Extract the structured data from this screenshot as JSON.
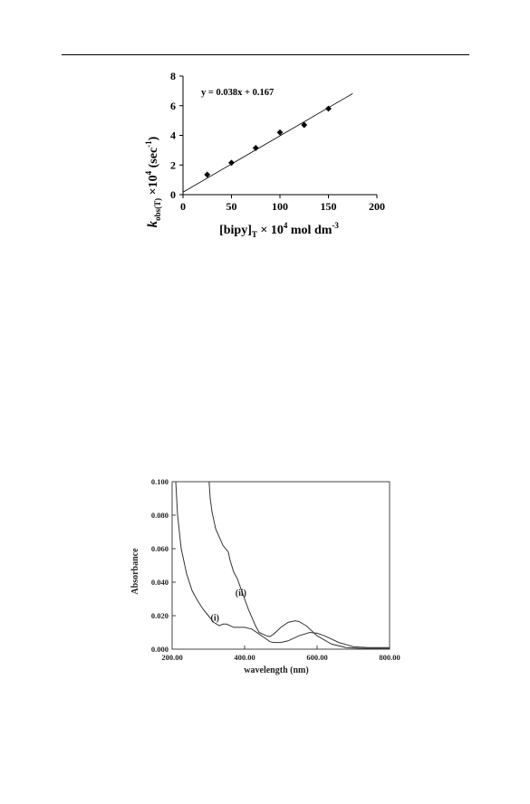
{
  "chart_data": [
    {
      "type": "scatter",
      "equation": "y = 0.038x + 0.167",
      "x": [
        25,
        50,
        75,
        100,
        125,
        150
      ],
      "y": [
        1.35,
        2.15,
        3.15,
        4.2,
        4.7,
        5.8
      ],
      "trendline": {
        "slope": 0.038,
        "intercept": 0.167,
        "x_range": [
          0,
          175
        ]
      },
      "xlim": [
        0,
        200
      ],
      "ylim": [
        0,
        8
      ],
      "x_ticks": [
        "0",
        "50",
        "100",
        "150",
        "200"
      ],
      "y_ticks": [
        "0",
        "2",
        "4",
        "6",
        "8"
      ],
      "ylabel": {
        "k": "k",
        "sub": "obs(T)",
        "mid": " ×10",
        "exp": "4",
        "unit": " (sec",
        "unit_exp": "-1",
        "close": ")"
      },
      "xlabel": {
        "main": "[bipy]",
        "sub": "T",
        "mid": " × 10",
        "exp": "4",
        "tail": " mol dm",
        "tail_exp": "-3"
      },
      "marker": "diamond",
      "grid": false
    },
    {
      "type": "line",
      "xlim": [
        200,
        800
      ],
      "ylim": [
        0,
        0.1
      ],
      "x_ticks": [
        "200.00",
        "400.00",
        "600.00",
        "800.00"
      ],
      "y_ticks": [
        "0.000",
        "0.020",
        "0.040",
        "0.060",
        "0.080",
        "0.100"
      ],
      "xlabel": "wavelength (nm)",
      "ylabel": "Absorbance",
      "series": [
        {
          "name": "(i)",
          "x": [
            210,
            215,
            225,
            240,
            255,
            270,
            285,
            300,
            315,
            330,
            340,
            350,
            360,
            370,
            380,
            400,
            420,
            440,
            460,
            470,
            480,
            500,
            520,
            550,
            580,
            600,
            620,
            660,
            700,
            740,
            780,
            800
          ],
          "y": [
            0.1,
            0.08,
            0.06,
            0.045,
            0.035,
            0.029,
            0.024,
            0.02,
            0.016,
            0.014,
            0.015,
            0.015,
            0.014,
            0.013,
            0.013,
            0.013,
            0.012,
            0.009,
            0.006,
            0.0045,
            0.004,
            0.004,
            0.005,
            0.008,
            0.01,
            0.0095,
            0.008,
            0.004,
            0.0015,
            0.001,
            0.001,
            0.001
          ]
        },
        {
          "name": "(ii)",
          "x": [
            302,
            305,
            310,
            320,
            340,
            355,
            360,
            370,
            380,
            390,
            400,
            410,
            420,
            430,
            440,
            460,
            470,
            480,
            490,
            500,
            520,
            540,
            550,
            570,
            600,
            640,
            680,
            720,
            760,
            800
          ],
          "y": [
            0.1,
            0.09,
            0.082,
            0.072,
            0.062,
            0.058,
            0.053,
            0.046,
            0.042,
            0.036,
            0.03,
            0.024,
            0.019,
            0.014,
            0.01,
            0.008,
            0.0075,
            0.009,
            0.011,
            0.013,
            0.016,
            0.017,
            0.0165,
            0.014,
            0.008,
            0.003,
            0.001,
            0.0005,
            0.0005,
            0.0005
          ]
        }
      ]
    }
  ]
}
